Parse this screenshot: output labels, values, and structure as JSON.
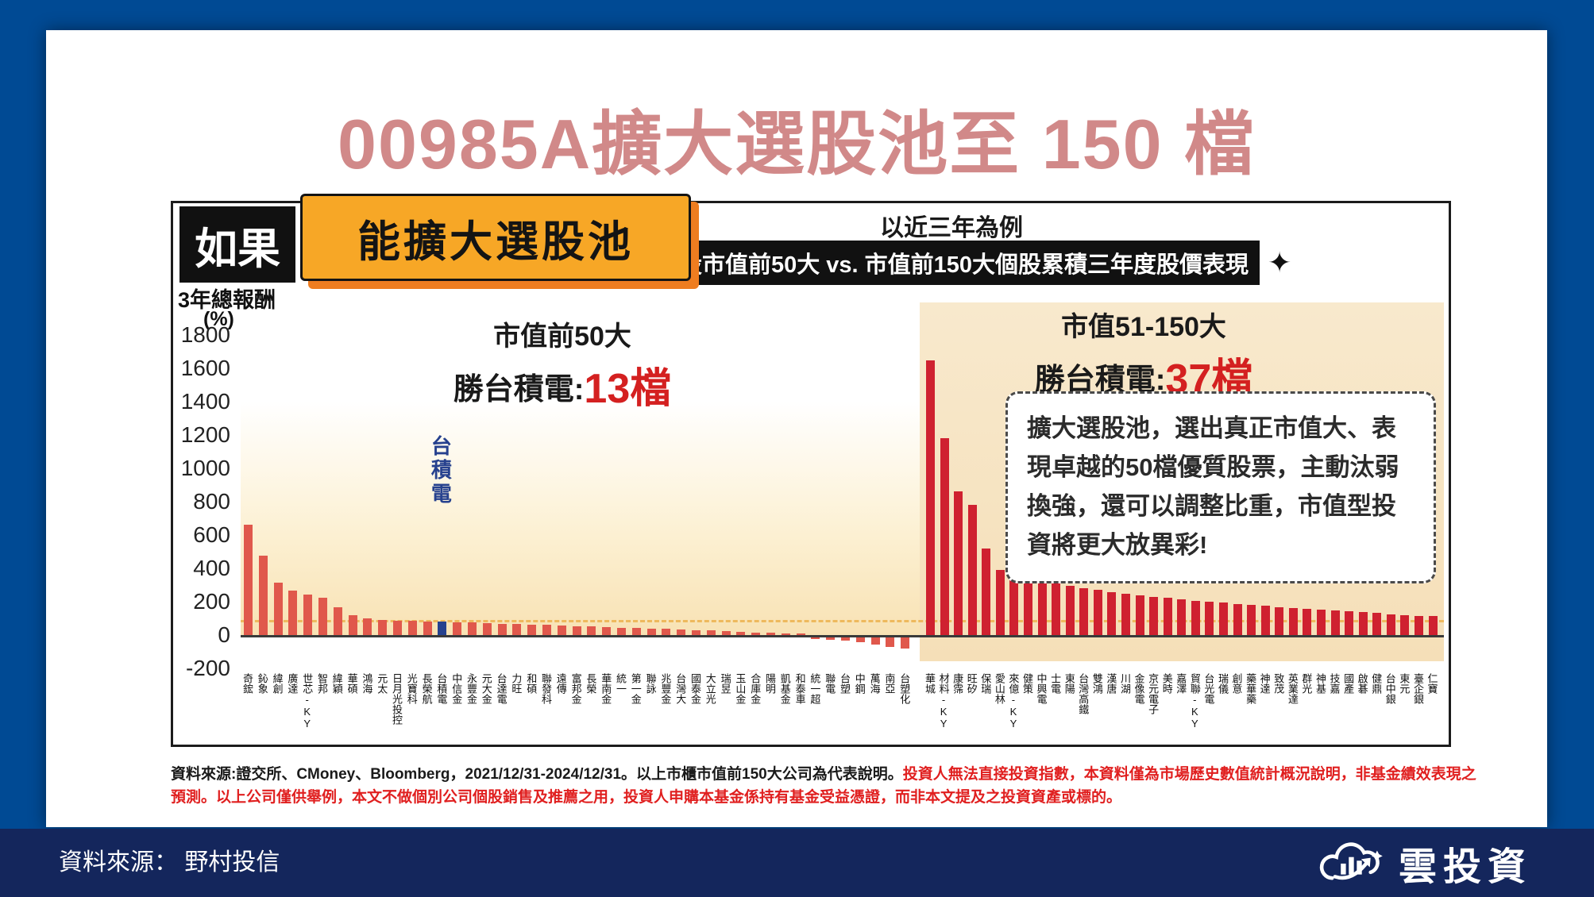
{
  "page": {
    "title": "00985A擴大選股池至 150 檔"
  },
  "header": {
    "prefix_badge": "如果",
    "main_badge": "能擴大選股池",
    "example_line": "以近三年為例",
    "banner": "台股市值前50大 vs. 市值前150大個股累積三年度股價表現",
    "sparkle": "✦"
  },
  "chart_data": {
    "type": "bar",
    "title": "台股市值前50大 vs. 市值前150大個股累積三年度股價表現",
    "ylabel": "3年總報酬",
    "ylabel_unit": "(%)",
    "ylim": [
      -200,
      1800
    ],
    "y_ticks": [
      1800,
      1600,
      1400,
      1200,
      1000,
      800,
      600,
      400,
      200,
      0,
      -200
    ],
    "grid": false,
    "benchmark_line_value": 81,
    "left_section": {
      "title": "市值前50大",
      "win_label": "勝台積電:",
      "win_count": "13檔",
      "highlight_index": 13,
      "highlight_label": "台積電",
      "categories": [
        "奇鋐",
        "鈊象",
        "緯創",
        "廣達",
        "世芯-KY",
        "智邦",
        "緯穎",
        "華碩",
        "鴻海",
        "元太",
        "日月光投控",
        "光寶科",
        "長榮航",
        "台積電",
        "中信金",
        "永豐金",
        "元大金",
        "台達電",
        "力旺",
        "和碩",
        "聯發科",
        "遠傳",
        "富邦金",
        "長榮",
        "華南金",
        "統一",
        "第一金",
        "聯詠",
        "兆豐金",
        "台灣大",
        "國泰金",
        "大立光",
        "瑞昱",
        "玉山金",
        "合庫金",
        "陽明",
        "凱基金",
        "和泰車",
        "統一超",
        "聯電",
        "台塑",
        "中鋼",
        "萬海",
        "南亞",
        "台塑化"
      ],
      "values": [
        660,
        475,
        315,
        265,
        245,
        225,
        165,
        120,
        100,
        92,
        88,
        85,
        82,
        81,
        78,
        75,
        72,
        69,
        66,
        63,
        60,
        57,
        54,
        51,
        48,
        45,
        42,
        39,
        36,
        33,
        30,
        27,
        24,
        20,
        16,
        12,
        8,
        4,
        -5,
        -12,
        -20,
        -30,
        -42,
        -55,
        -65
      ]
    },
    "right_section": {
      "title": "市值51-150大",
      "win_label": "勝台積電:",
      "win_count": "37檔",
      "categories": [
        "華城",
        "材料-KY",
        "康霈",
        "旺矽",
        "保瑞",
        "愛山林",
        "來億-KY",
        "健策",
        "中興電",
        "士電",
        "東陽",
        "台灣高鐵",
        "雙鴻",
        "漢唐",
        "川湖",
        "金像電",
        "京元電子",
        "美時",
        "嘉澤",
        "貿聯-KY",
        "台光電",
        "瑞儀",
        "創意",
        "藥華藥",
        "神達",
        "致茂",
        "英業達",
        "群光",
        "神基",
        "技嘉",
        "國產",
        "啟碁",
        "健鼎",
        "台中銀",
        "東元",
        "臺企銀",
        "仁寶"
      ],
      "values": [
        1650,
        1180,
        860,
        780,
        520,
        390,
        380,
        355,
        330,
        310,
        295,
        282,
        270,
        258,
        248,
        238,
        230,
        222,
        214,
        207,
        200,
        193,
        187,
        181,
        175,
        169,
        163,
        157,
        151,
        146,
        141,
        136,
        131,
        126,
        121,
        116,
        112
      ]
    },
    "callout": "擴大選股池，選出真正市值大、表現卓越的50檔優質股票，主動汰弱換強，還可以調整比重，市值型投資將更大放異彩!"
  },
  "colors": {
    "title_pink": "#d18989",
    "bar_left": "#e0584c",
    "bar_right": "#cf2130",
    "bar_highlight": "#26418e",
    "count_red": "#d42020",
    "disclaimer_red": "#e01f1f"
  },
  "disclaimer": {
    "black_part": "資料來源:證交所、CMoney、Bloomberg，2021/12/31-2024/12/31。以上市櫃市值前150大公司為代表說明。",
    "red_part": "投資人無法直接投資指數，本資料僅為市場歷史數值統計概況說明，非基金績效表現之預測。以上公司僅供舉例，本文不做個別公司個股銷售及推薦之用，投資人申購本基金係持有基金受益憑證，而非本文提及之投資資產或標的。"
  },
  "footer": {
    "source": "資料來源： 野村投信",
    "logo_text": "雲投資"
  }
}
